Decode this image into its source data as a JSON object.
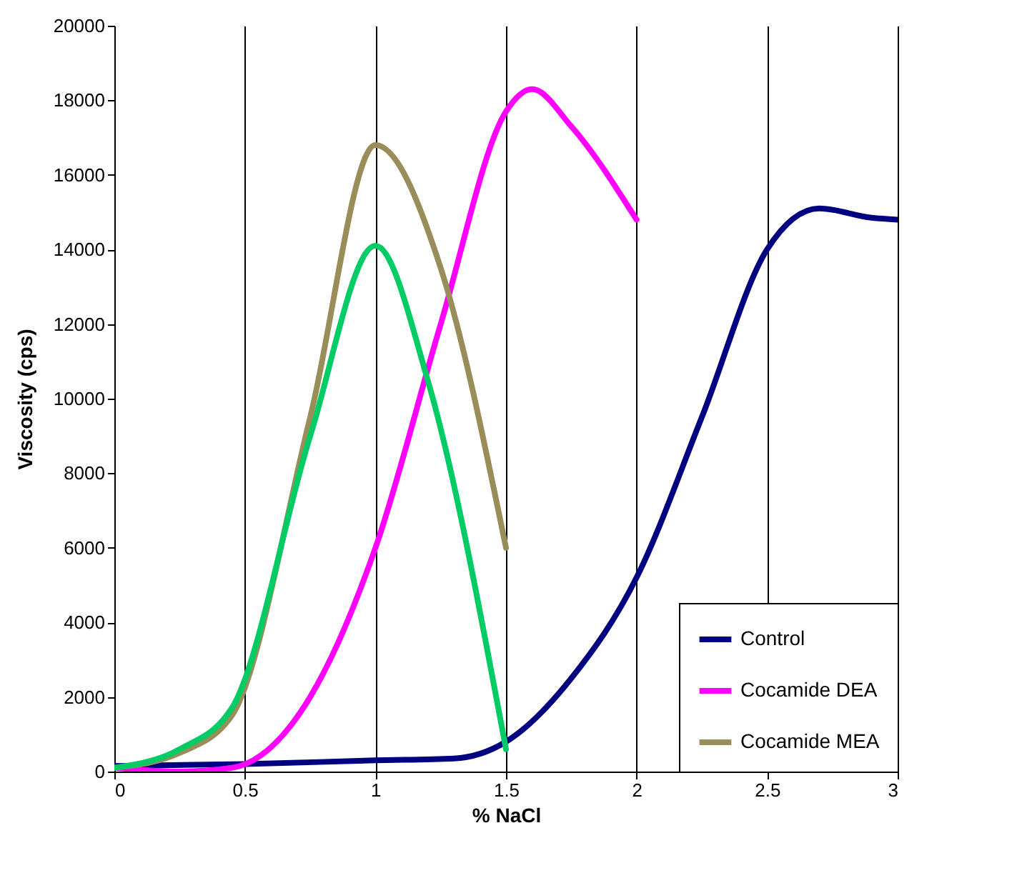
{
  "chart_data": {
    "type": "line",
    "xlabel": "% NaCl",
    "ylabel": "Viscosity (cps)",
    "xlim": [
      0,
      3
    ],
    "xticks": [
      0,
      0.5,
      1,
      1.5,
      2,
      2.5,
      3
    ],
    "ylim": [
      0,
      20000
    ],
    "yticks": [
      0,
      2000,
      4000,
      6000,
      8000,
      10000,
      12000,
      14000,
      16000,
      18000,
      20000
    ],
    "grid": "x",
    "legend": "bottom right",
    "line_style": "solid",
    "marker": "none",
    "series": [
      {
        "name": "Control",
        "color": "#000080",
        "x": [
          0,
          0.5,
          1,
          1.3,
          1.5,
          1.75,
          2,
          2.25,
          2.5,
          2.7,
          2.9,
          3
        ],
        "values": [
          150,
          200,
          300,
          350,
          800,
          2500,
          5200,
          9500,
          14000,
          15100,
          14850,
          14800
        ]
      },
      {
        "name": "Cocamide DEA",
        "color": "#ff00ff",
        "x": [
          0,
          0.25,
          0.45,
          0.75,
          1,
          1.25,
          1.5,
          1.6,
          1.75,
          2
        ],
        "values": [
          100,
          0,
          100,
          2000,
          6000,
          12000,
          17700,
          18300,
          17300,
          14800
        ]
      },
      {
        "name": "Cocamide MEA",
        "color": "#998e5a",
        "x": [
          0,
          0.25,
          0.45,
          0.75,
          1,
          1.25,
          1.5
        ],
        "values": [
          100,
          500,
          1500,
          9500,
          16800,
          13500,
          6000
        ]
      },
      {
        "name": null,
        "color": "#00cc66",
        "x": [
          0,
          0.25,
          0.45,
          0.75,
          1,
          1.2,
          1.5
        ],
        "values": [
          100,
          600,
          1700,
          9000,
          14100,
          10500,
          600
        ]
      }
    ]
  }
}
